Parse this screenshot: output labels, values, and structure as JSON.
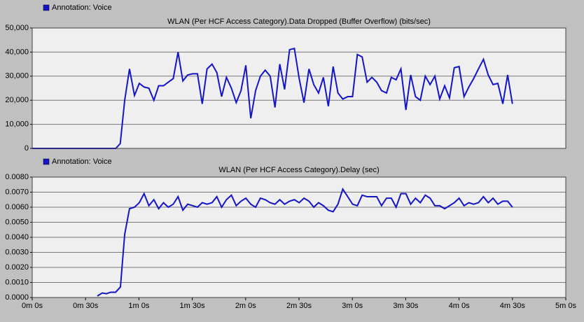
{
  "chart_data": [
    {
      "type": "line",
      "title": "WLAN (Per HCF Access Category).Data Dropped (Buffer Overflow) (bits/sec)",
      "x": [
        0,
        47,
        49.5,
        52,
        54.7,
        57.5,
        60.2,
        62.9,
        65.6,
        68.4,
        71.1,
        73.8,
        76.5,
        79.3,
        82,
        84.7,
        87.4,
        90.2,
        92.9,
        95.6,
        98.3,
        101.1,
        103.8,
        106.5,
        109.2,
        112,
        114.7,
        117.4,
        120.1,
        122.9,
        125.6,
        128.3,
        131,
        133.8,
        136.5,
        139.2,
        141.9,
        144.7,
        147.4,
        150.1,
        152.8,
        155.6,
        158.3,
        161,
        163.7,
        166.5,
        169.2,
        171.9,
        174.6,
        177.4,
        180.1,
        182.8,
        185.5,
        188.3,
        191,
        193.7,
        196.4,
        199.2,
        201.9,
        204.6,
        207.3,
        210.1,
        212.8,
        215.5,
        218.2,
        221,
        223.7,
        226.4,
        229.1,
        231.9,
        234.6,
        237.3,
        240,
        242.8,
        245.5,
        248.2,
        250.9,
        253.7,
        256.4,
        259.1,
        261.8,
        264.6,
        267.3,
        270
      ],
      "series": [
        {
          "name": "Annotation: Voice",
          "color": "#1414c8",
          "values": [
            0,
            0,
            2000,
            20000,
            33000,
            22000,
            27000,
            25500,
            25000,
            20000,
            26000,
            26000,
            27500,
            29000,
            40000,
            28000,
            30500,
            31000,
            31000,
            18500,
            33000,
            35000,
            31500,
            21500,
            29500,
            25000,
            19000,
            24000,
            34500,
            12500,
            24000,
            30000,
            32500,
            30000,
            17000,
            35000,
            24500,
            41000,
            41500,
            29000,
            19000,
            33000,
            26500,
            23000,
            29500,
            17500,
            34000,
            23000,
            20500,
            21500,
            21500,
            39000,
            38000,
            27500,
            29500,
            27500,
            24000,
            23000,
            29500,
            28500,
            33000,
            16000,
            30500,
            21500,
            20000,
            30000,
            26500,
            30000,
            20500,
            26000,
            21000,
            33500,
            34000,
            21500,
            25500,
            29000,
            33000,
            37000,
            30500,
            26500,
            27000,
            18500,
            30500,
            18500
          ]
        }
      ],
      "xlim": [
        0,
        300
      ],
      "ylim": [
        0,
        50000
      ],
      "yticks": [
        0,
        {
          "value": 10000,
          "label": "10,000"
        },
        {
          "value": 20000,
          "label": "20,000"
        },
        {
          "value": 30000,
          "label": "30,000"
        },
        {
          "value": 40000,
          "label": "40,000"
        },
        {
          "value": 50000,
          "label": "50,000"
        }
      ],
      "grid": true
    },
    {
      "type": "line",
      "title": "WLAN (Per HCF Access Category).Delay (sec)",
      "x": [
        36.6,
        39.4,
        41.7,
        44.1,
        46.9,
        49.6,
        52,
        54.7,
        57.5,
        60.2,
        62.9,
        65.6,
        68.4,
        71.1,
        73.8,
        76.5,
        79.3,
        82,
        84.7,
        87.4,
        90.2,
        92.9,
        95.6,
        98.3,
        101.1,
        103.8,
        106.5,
        109.2,
        112,
        114.7,
        117.4,
        120.1,
        122.9,
        125.6,
        128.3,
        131,
        133.8,
        136.5,
        139.2,
        141.9,
        144.7,
        147.4,
        150.1,
        152.8,
        155.6,
        158.3,
        161,
        163.7,
        166.5,
        169.2,
        171.9,
        174.6,
        177.4,
        180.1,
        182.8,
        185.5,
        188.3,
        191,
        193.7,
        196.4,
        199.2,
        201.9,
        204.6,
        207.3,
        210.1,
        212.8,
        215.5,
        218.2,
        221,
        223.7,
        226.4,
        229.1,
        231.9,
        234.6,
        237.3,
        240,
        242.8,
        245.5,
        248.2,
        250.9,
        253.7,
        256.4,
        259.1,
        261.8,
        264.6,
        267.3,
        270
      ],
      "series": [
        {
          "name": "Annotation: Voice",
          "color": "#1414c8",
          "values": [
            0.0001,
            0.0003,
            0.00025,
            0.00035,
            0.00035,
            0.0007,
            0.0042,
            0.0059,
            0.006,
            0.0063,
            0.0069,
            0.0061,
            0.0065,
            0.0059,
            0.0063,
            0.006,
            0.0062,
            0.0067,
            0.0058,
            0.0062,
            0.0061,
            0.006,
            0.0063,
            0.0062,
            0.0063,
            0.0067,
            0.006,
            0.0065,
            0.0068,
            0.0061,
            0.0064,
            0.0066,
            0.0062,
            0.006,
            0.0066,
            0.0065,
            0.0063,
            0.0062,
            0.0065,
            0.0062,
            0.0064,
            0.0065,
            0.0063,
            0.0066,
            0.0064,
            0.006,
            0.0063,
            0.0061,
            0.0058,
            0.0057,
            0.0062,
            0.0072,
            0.0067,
            0.0062,
            0.0061,
            0.0068,
            0.0067,
            0.0067,
            0.0067,
            0.0061,
            0.0066,
            0.0066,
            0.006,
            0.0069,
            0.0069,
            0.0062,
            0.0066,
            0.0063,
            0.0068,
            0.0066,
            0.0061,
            0.0061,
            0.0059,
            0.0061,
            0.0063,
            0.0066,
            0.0061,
            0.0063,
            0.0062,
            0.0063,
            0.0067,
            0.0063,
            0.0066,
            0.0062,
            0.0064,
            0.0064,
            0.006
          ]
        }
      ],
      "xlim": [
        0,
        300
      ],
      "ylim": [
        0,
        0.008
      ],
      "yticks": [
        {
          "value": 0,
          "label": "0.0000"
        },
        {
          "value": 0.001,
          "label": "0.0010"
        },
        {
          "value": 0.002,
          "label": "0.0020"
        },
        {
          "value": 0.003,
          "label": "0.0030"
        },
        {
          "value": 0.004,
          "label": "0.0040"
        },
        {
          "value": 0.005,
          "label": "0.0050"
        },
        {
          "value": 0.006,
          "label": "0.0060"
        },
        {
          "value": 0.007,
          "label": "0.0070"
        },
        {
          "value": 0.008,
          "label": "0.0080"
        }
      ],
      "xticks": [
        {
          "value": 0,
          "label": "0m 0s"
        },
        {
          "value": 30,
          "label": "0m 30s"
        },
        {
          "value": 60,
          "label": "1m 0s"
        },
        {
          "value": 90,
          "label": "1m 30s"
        },
        {
          "value": 120,
          "label": "2m 0s"
        },
        {
          "value": 150,
          "label": "2m 30s"
        },
        {
          "value": 180,
          "label": "3m 0s"
        },
        {
          "value": 210,
          "label": "3m 30s"
        },
        {
          "value": 240,
          "label": "4m 0s"
        },
        {
          "value": 270,
          "label": "4m 30s"
        },
        {
          "value": 300,
          "label": "5m 0s"
        }
      ],
      "grid": true
    }
  ]
}
